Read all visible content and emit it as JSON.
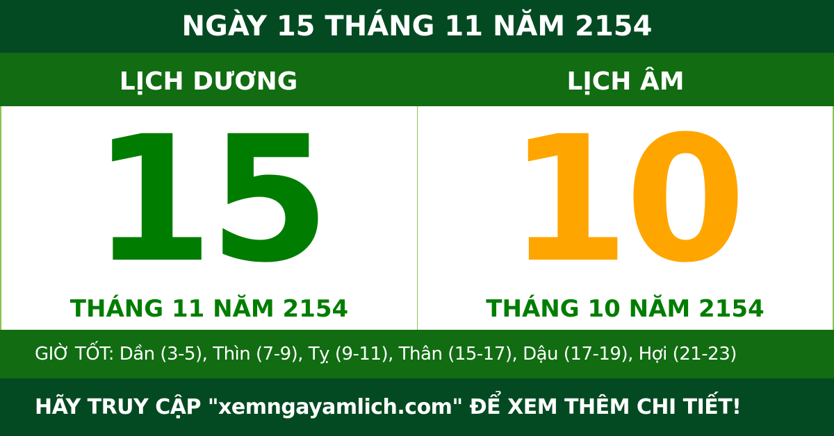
{
  "header": {
    "title": "NGÀY 15 THÁNG 11 NĂM 2154"
  },
  "solar": {
    "label": "LỊCH DƯƠNG",
    "day": "15",
    "month_year": "THÁNG 11 NĂM 2154"
  },
  "lunar": {
    "label": "LỊCH ÂM",
    "day": "10",
    "month_year": "THÁNG 10 NĂM 2154"
  },
  "good_hours": "GIỜ TỐT: Dần (3-5), Thìn (7-9), Tỵ (9-11), Thân (15-17), Dậu (17-19), Hợi (21-23)",
  "footer": "HÃY TRUY CẬP \"xemngayamlich.com\" ĐỂ XEM THÊM CHI TIẾT!",
  "colors": {
    "dark_green": "#034a22",
    "band_green": "#116c12",
    "solar_green": "#007d00",
    "lunar_orange": "#ffa500"
  }
}
